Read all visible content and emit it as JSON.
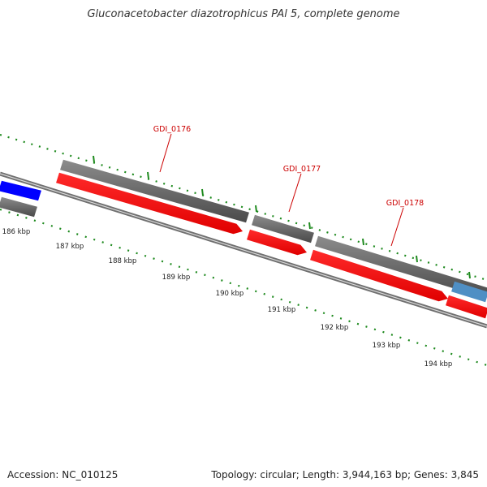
{
  "title": "Gluconacetobacter diazotrophicus PAl 5, complete genome",
  "colors": {
    "background": "#ffffff",
    "backbone": "#7a7a7a",
    "forward_cds": "#666666",
    "reverse_cds_red": "#ff0000",
    "reverse_cds_blue": "#0000ff",
    "forward_cds_light_blue": "#4f8fc4",
    "tick": "#1e8a1e",
    "gene_label": "#cc0000"
  },
  "ticks": {
    "labels": [
      "186 kbp",
      "187 kbp",
      "188 kbp",
      "189 kbp",
      "190 kbp",
      "191 kbp",
      "192 kbp",
      "193 kbp",
      "194 kbp"
    ]
  },
  "genes": [
    {
      "label": "GDI_0176"
    },
    {
      "label": "GDI_0177"
    },
    {
      "label": "GDI_0178"
    }
  ],
  "footer": {
    "accession": "Accession: NC_010125",
    "summary": "Topology: circular; Length: 3,944,163 bp; Genes: 3,845"
  }
}
